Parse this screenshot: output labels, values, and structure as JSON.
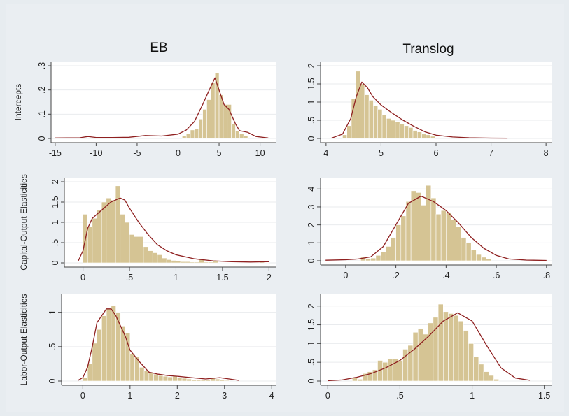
{
  "columns": [
    "EB",
    "Translog"
  ],
  "row_labels": [
    "Intercepts",
    "Capital-Output Elasticities",
    "Labor-Output Elasticities"
  ],
  "colors": {
    "bar_fill": "#d5c494",
    "bar_stroke": "#ffffff",
    "density_line": "#8f2020",
    "panel_bg": "#ffffff",
    "figure_bg": "#eaeef2",
    "axis": "#444444"
  },
  "chart_data": [
    {
      "type": "bar",
      "name": "EB-intercepts",
      "column": "EB",
      "ylabel": "Intercepts",
      "xlim": [
        -15.5,
        12
      ],
      "ylim": [
        0,
        0.3
      ],
      "xticks": [
        -15,
        -10,
        -5,
        0,
        5,
        10
      ],
      "xtick_labels": [
        "-15",
        "-10",
        "-5",
        "0",
        "5",
        "10"
      ],
      "yticks": [
        0,
        0.1,
        0.2,
        0.3
      ],
      "ytick_labels": [
        "0",
        ".1",
        ".2",
        ".3"
      ],
      "bin_start": 0.5,
      "bin_width": 0.5,
      "values": [
        0.01,
        0.02,
        0.035,
        0.04,
        0.08,
        0.12,
        0.16,
        0.23,
        0.27,
        0.18,
        0.14,
        0.14,
        0.06,
        0.03,
        0.02,
        0.01
      ],
      "density": [
        [
          -15,
          0.002
        ],
        [
          -12,
          0.003
        ],
        [
          -11,
          0.008
        ],
        [
          -10,
          0.004
        ],
        [
          -8,
          0.004
        ],
        [
          -6,
          0.005
        ],
        [
          -4,
          0.012
        ],
        [
          -2,
          0.01
        ],
        [
          0,
          0.018
        ],
        [
          1,
          0.035
        ],
        [
          2,
          0.07
        ],
        [
          3,
          0.14
        ],
        [
          3.8,
          0.2
        ],
        [
          4.5,
          0.25
        ],
        [
          5,
          0.2
        ],
        [
          5.6,
          0.14
        ],
        [
          6.2,
          0.12
        ],
        [
          7,
          0.06
        ],
        [
          7.5,
          0.032
        ],
        [
          8.5,
          0.025
        ],
        [
          9.5,
          0.008
        ],
        [
          11,
          0.002
        ]
      ]
    },
    {
      "type": "bar",
      "name": "Translog-intercepts",
      "column": "Translog",
      "ylabel": "",
      "xlim": [
        3.9,
        8.1
      ],
      "ylim": [
        0,
        2
      ],
      "xticks": [
        4,
        5,
        6,
        7,
        8
      ],
      "xtick_labels": [
        "4",
        "5",
        "6",
        "7",
        "8"
      ],
      "yticks": [
        0,
        0.5,
        1,
        1.5,
        2
      ],
      "ytick_labels": [
        "0",
        ".5",
        "1",
        "1.5",
        "2"
      ],
      "bin_start": 4.3,
      "bin_width": 0.08,
      "values": [
        0.1,
        0.35,
        1.1,
        1.85,
        1.5,
        1.2,
        1.05,
        0.9,
        0.8,
        0.65,
        0.55,
        0.5,
        0.45,
        0.4,
        0.35,
        0.3,
        0.22,
        0.18,
        0.12,
        0.1,
        0.06
      ],
      "density": [
        [
          4.1,
          0.01
        ],
        [
          4.3,
          0.12
        ],
        [
          4.45,
          0.55
        ],
        [
          4.55,
          1.15
        ],
        [
          4.65,
          1.55
        ],
        [
          4.75,
          1.4
        ],
        [
          4.85,
          1.15
        ],
        [
          5.0,
          0.92
        ],
        [
          5.2,
          0.7
        ],
        [
          5.4,
          0.5
        ],
        [
          5.6,
          0.33
        ],
        [
          5.8,
          0.18
        ],
        [
          6.0,
          0.09
        ],
        [
          6.3,
          0.04
        ],
        [
          6.6,
          0.02
        ],
        [
          7.0,
          0.01
        ],
        [
          7.3,
          0.008
        ]
      ]
    },
    {
      "type": "bar",
      "name": "EB-capital",
      "column": "EB",
      "ylabel": "Capital-Output Elasticities",
      "xlim": [
        -0.2,
        2.08
      ],
      "ylim": [
        0,
        2
      ],
      "xticks": [
        0,
        0.5,
        1,
        1.5,
        2
      ],
      "xtick_labels": [
        "0",
        ".5",
        "1",
        "1.5",
        "2"
      ],
      "yticks": [
        0,
        0.5,
        1,
        1.5,
        2
      ],
      "ytick_labels": [
        "0",
        ".5",
        "1",
        "1.5",
        "2"
      ],
      "bin_start": 0,
      "bin_width": 0.05,
      "values": [
        1.2,
        0.9,
        1.1,
        1.3,
        1.5,
        1.6,
        1.55,
        1.9,
        1.2,
        1.0,
        0.7,
        0.65,
        0.65,
        0.4,
        0.3,
        0.25,
        0.2,
        0.12,
        0.08,
        0.06,
        0.05,
        0.03,
        0.03,
        0.02,
        0.02,
        0.1,
        0.02,
        0.02,
        0.04,
        0.01,
        0.01,
        0.01,
        0.01,
        0.01,
        0.01,
        0.01,
        0.01,
        0.01,
        0.04,
        0.01
      ],
      "density": [
        [
          -0.05,
          0.05
        ],
        [
          0,
          0.3
        ],
        [
          0.05,
          0.85
        ],
        [
          0.1,
          1.1
        ],
        [
          0.2,
          1.3
        ],
        [
          0.3,
          1.5
        ],
        [
          0.4,
          1.6
        ],
        [
          0.45,
          1.55
        ],
        [
          0.5,
          1.35
        ],
        [
          0.6,
          1.0
        ],
        [
          0.7,
          0.7
        ],
        [
          0.8,
          0.45
        ],
        [
          0.9,
          0.3
        ],
        [
          1.0,
          0.2
        ],
        [
          1.2,
          0.1
        ],
        [
          1.4,
          0.05
        ],
        [
          1.6,
          0.03
        ],
        [
          1.8,
          0.02
        ],
        [
          2.0,
          0.03
        ]
      ]
    },
    {
      "type": "bar",
      "name": "Translog-capital",
      "column": "Translog",
      "ylabel": "",
      "xlim": [
        -0.1,
        0.82
      ],
      "ylim": [
        0,
        4.4
      ],
      "xticks": [
        0,
        0.2,
        0.4,
        0.6,
        0.8
      ],
      "xtick_labels": [
        "0",
        ".2",
        ".4",
        ".6",
        ".8"
      ],
      "yticks": [
        0,
        1,
        2,
        3,
        4
      ],
      "ytick_labels": [
        "0",
        "1",
        "2",
        "3",
        "4"
      ],
      "bin_start": 0.06,
      "bin_width": 0.02,
      "values": [
        0.2,
        0.1,
        0.15,
        0.3,
        0.5,
        0.8,
        1.3,
        2.0,
        2.5,
        3.3,
        3.9,
        3.8,
        3.1,
        4.2,
        3.5,
        2.6,
        2.8,
        2.7,
        2.3,
        1.9,
        1.3,
        1.0,
        0.6,
        0.35,
        0.2,
        0.1
      ],
      "density": [
        [
          -0.08,
          0.03
        ],
        [
          0,
          0.06
        ],
        [
          0.05,
          0.1
        ],
        [
          0.1,
          0.22
        ],
        [
          0.15,
          0.8
        ],
        [
          0.2,
          2.0
        ],
        [
          0.25,
          3.2
        ],
        [
          0.3,
          3.6
        ],
        [
          0.35,
          3.3
        ],
        [
          0.4,
          2.8
        ],
        [
          0.45,
          2.1
        ],
        [
          0.5,
          1.3
        ],
        [
          0.55,
          0.7
        ],
        [
          0.6,
          0.3
        ],
        [
          0.65,
          0.1
        ],
        [
          0.72,
          0.04
        ],
        [
          0.8,
          0.02
        ]
      ]
    },
    {
      "type": "bar",
      "name": "EB-labor",
      "column": "EB",
      "ylabel": "Labor-Output Elasticities",
      "xlim": [
        -0.45,
        4.1
      ],
      "ylim": [
        0,
        1.2
      ],
      "xticks": [
        0,
        1,
        2,
        3,
        4
      ],
      "xtick_labels": [
        "0",
        "1",
        "2",
        "3",
        "4"
      ],
      "yticks": [
        0,
        0.5,
        1
      ],
      "ytick_labels": [
        "0",
        ".5",
        "1"
      ],
      "bin_start": 0,
      "bin_width": 0.1,
      "values": [
        0.05,
        0.25,
        0.55,
        0.75,
        0.95,
        1.05,
        1.1,
        1.0,
        0.8,
        0.7,
        0.4,
        0.35,
        0.2,
        0.15,
        0.12,
        0.1,
        0.08,
        0.07,
        0.06,
        0.07,
        0.05,
        0.04,
        0.03,
        0.02,
        0.02,
        0.02,
        0.02,
        0.04,
        0.03,
        0.02,
        0.01
      ],
      "density": [
        [
          -0.1,
          0.01
        ],
        [
          0,
          0.05
        ],
        [
          0.1,
          0.2
        ],
        [
          0.2,
          0.5
        ],
        [
          0.3,
          0.85
        ],
        [
          0.5,
          1.05
        ],
        [
          0.6,
          1.05
        ],
        [
          0.7,
          0.95
        ],
        [
          0.8,
          0.8
        ],
        [
          0.9,
          0.65
        ],
        [
          1.0,
          0.45
        ],
        [
          1.2,
          0.28
        ],
        [
          1.4,
          0.13
        ],
        [
          1.6,
          0.1
        ],
        [
          1.8,
          0.08
        ],
        [
          2.0,
          0.07
        ],
        [
          2.3,
          0.05
        ],
        [
          2.6,
          0.03
        ],
        [
          2.9,
          0.05
        ],
        [
          3.1,
          0.03
        ],
        [
          3.3,
          0.01
        ]
      ]
    },
    {
      "type": "bar",
      "name": "Translog-labor",
      "column": "Translog",
      "ylabel": "",
      "xlim": [
        -0.05,
        1.55
      ],
      "ylim": [
        0,
        2.2
      ],
      "xticks": [
        0,
        0.5,
        1,
        1.5
      ],
      "xtick_labels": [
        "0",
        ".5",
        "1",
        "1.5"
      ],
      "yticks": [
        0,
        0.5,
        1,
        1.5,
        2
      ],
      "ytick_labels": [
        "0",
        ".5",
        "1",
        "1.5",
        "2"
      ],
      "bin_start": 0.17,
      "bin_width": 0.035,
      "values": [
        0.1,
        0.05,
        0.2,
        0.25,
        0.3,
        0.55,
        0.5,
        0.6,
        0.6,
        0.55,
        0.85,
        0.95,
        1.3,
        1.4,
        1.25,
        1.55,
        1.7,
        2.05,
        1.85,
        1.8,
        1.75,
        1.6,
        1.35,
        1.0,
        0.65,
        0.45,
        0.25,
        0.15,
        0.05
      ],
      "density": [
        [
          0,
          0.01
        ],
        [
          0.1,
          0.03
        ],
        [
          0.2,
          0.1
        ],
        [
          0.3,
          0.2
        ],
        [
          0.4,
          0.35
        ],
        [
          0.5,
          0.55
        ],
        [
          0.6,
          0.85
        ],
        [
          0.7,
          1.2
        ],
        [
          0.8,
          1.6
        ],
        [
          0.9,
          1.82
        ],
        [
          1.0,
          1.6
        ],
        [
          1.1,
          0.95
        ],
        [
          1.2,
          0.35
        ],
        [
          1.3,
          0.08
        ],
        [
          1.4,
          0.02
        ]
      ]
    }
  ]
}
